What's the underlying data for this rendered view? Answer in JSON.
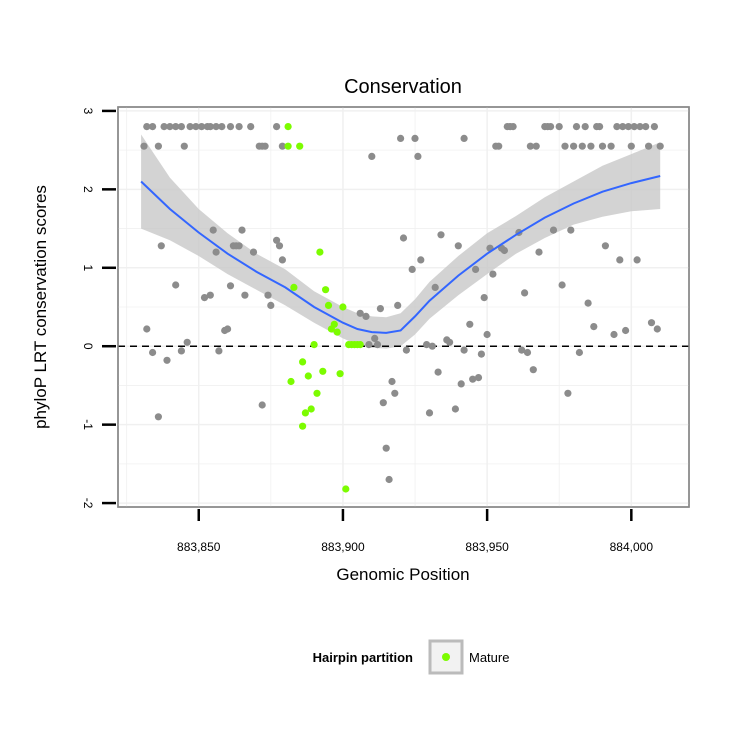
{
  "chart_data": {
    "type": "scatter",
    "title": "Conservation",
    "xlabel": "Genomic Position",
    "ylabel": "phyloP LRT conservation scores",
    "xlim": [
      883822,
      884020
    ],
    "ylim": [
      -2.05,
      3.05
    ],
    "x_ticks": [
      883850,
      883900,
      883950,
      884000
    ],
    "x_tick_labels": [
      "883,850",
      "883,900",
      "883,950",
      "884,000"
    ],
    "y_ticks": [
      -2,
      -1,
      0,
      1,
      2,
      3
    ],
    "y_tick_labels": [
      "-2",
      "-1",
      "0",
      "1",
      "2",
      "3"
    ],
    "grid": true,
    "reference_line": {
      "y": 0,
      "style": "dashed",
      "color": "#000000"
    },
    "legend": {
      "title": "Hairpin partition",
      "position": "bottom",
      "entries": [
        {
          "label": "Mature",
          "color": "#7cfc00"
        }
      ]
    },
    "colors": {
      "other_points": "#8c8c8c",
      "mature_points": "#7cfc00",
      "smooth_line": "#3366ff",
      "confidence_band": "#c8c8c8"
    },
    "series": [
      {
        "name": "",
        "color": "#8c8c8c",
        "points": [
          [
            883831,
            2.55
          ],
          [
            883832,
            2.8
          ],
          [
            883834,
            2.8
          ],
          [
            883836,
            2.55
          ],
          [
            883838,
            2.8
          ],
          [
            883840,
            2.8
          ],
          [
            883842,
            2.8
          ],
          [
            883844,
            2.8
          ],
          [
            883845,
            2.55
          ],
          [
            883847,
            2.8
          ],
          [
            883849,
            2.8
          ],
          [
            883851,
            2.8
          ],
          [
            883853,
            2.8
          ],
          [
            883854,
            2.8
          ],
          [
            883856,
            2.8
          ],
          [
            883858,
            2.8
          ],
          [
            883861,
            2.8
          ],
          [
            883864,
            2.8
          ],
          [
            883868,
            2.8
          ],
          [
            883871,
            2.55
          ],
          [
            883872,
            2.55
          ],
          [
            883873,
            2.55
          ],
          [
            883877,
            2.8
          ],
          [
            883879,
            2.55
          ],
          [
            883832,
            0.22
          ],
          [
            883834,
            -0.08
          ],
          [
            883836,
            -0.9
          ],
          [
            883837,
            1.28
          ],
          [
            883839,
            -0.18
          ],
          [
            883842,
            0.78
          ],
          [
            883844,
            -0.06
          ],
          [
            883846,
            0.05
          ],
          [
            883852,
            0.62
          ],
          [
            883854,
            0.65
          ],
          [
            883855,
            1.48
          ],
          [
            883856,
            1.2
          ],
          [
            883857,
            -0.06
          ],
          [
            883859,
            0.2
          ],
          [
            883860,
            0.22
          ],
          [
            883861,
            0.77
          ],
          [
            883862,
            1.28
          ],
          [
            883863,
            1.28
          ],
          [
            883864,
            1.28
          ],
          [
            883865,
            1.48
          ],
          [
            883866,
            0.65
          ],
          [
            883869,
            1.2
          ],
          [
            883872,
            -0.75
          ],
          [
            883874,
            0.65
          ],
          [
            883875,
            0.52
          ],
          [
            883877,
            1.35
          ],
          [
            883878,
            1.28
          ],
          [
            883879,
            1.1
          ],
          [
            883906,
            0.42
          ],
          [
            883908,
            0.38
          ],
          [
            883909,
            0.02
          ],
          [
            883910,
            2.42
          ],
          [
            883911,
            0.1
          ],
          [
            883912,
            0.02
          ],
          [
            883913,
            0.48
          ],
          [
            883914,
            -0.72
          ],
          [
            883915,
            -1.3
          ],
          [
            883916,
            -1.7
          ],
          [
            883917,
            -0.45
          ],
          [
            883918,
            -0.6
          ],
          [
            883919,
            0.52
          ],
          [
            883920,
            2.65
          ],
          [
            883921,
            1.38
          ],
          [
            883922,
            -0.05
          ],
          [
            883924,
            0.98
          ],
          [
            883925,
            2.65
          ],
          [
            883926,
            2.42
          ],
          [
            883927,
            1.1
          ],
          [
            883929,
            0.02
          ],
          [
            883930,
            -0.85
          ],
          [
            883931,
            0.0
          ],
          [
            883932,
            0.75
          ],
          [
            883933,
            -0.33
          ],
          [
            883934,
            1.42
          ],
          [
            883936,
            0.08
          ],
          [
            883937,
            0.05
          ],
          [
            883939,
            -0.8
          ],
          [
            883940,
            1.28
          ],
          [
            883941,
            -0.48
          ],
          [
            883942,
            -0.05
          ],
          [
            883942,
            2.65
          ],
          [
            883944,
            0.28
          ],
          [
            883945,
            -0.42
          ],
          [
            883946,
            0.98
          ],
          [
            883947,
            -0.4
          ],
          [
            883948,
            -0.1
          ],
          [
            883949,
            0.62
          ],
          [
            883950,
            0.15
          ],
          [
            883951,
            1.25
          ],
          [
            883952,
            0.92
          ],
          [
            883953,
            2.55
          ],
          [
            883954,
            2.55
          ],
          [
            883955,
            1.25
          ],
          [
            883956,
            1.22
          ],
          [
            883957,
            2.8
          ],
          [
            883958,
            2.8
          ],
          [
            883959,
            2.8
          ],
          [
            883961,
            1.45
          ],
          [
            883962,
            -0.05
          ],
          [
            883963,
            0.68
          ],
          [
            883964,
            -0.08
          ],
          [
            883965,
            2.55
          ],
          [
            883966,
            -0.3
          ],
          [
            883967,
            2.55
          ],
          [
            883968,
            1.2
          ],
          [
            883970,
            2.8
          ],
          [
            883971,
            2.8
          ],
          [
            883972,
            2.8
          ],
          [
            883973,
            1.48
          ],
          [
            883975,
            2.8
          ],
          [
            883976,
            0.78
          ],
          [
            883977,
            2.55
          ],
          [
            883978,
            -0.6
          ],
          [
            883979,
            1.48
          ],
          [
            883980,
            2.55
          ],
          [
            883981,
            2.8
          ],
          [
            883982,
            -0.08
          ],
          [
            883983,
            2.55
          ],
          [
            883984,
            2.8
          ],
          [
            883985,
            0.55
          ],
          [
            883986,
            2.55
          ],
          [
            883987,
            0.25
          ],
          [
            883988,
            2.8
          ],
          [
            883989,
            2.8
          ],
          [
            883990,
            2.55
          ],
          [
            883991,
            1.28
          ],
          [
            883993,
            2.55
          ],
          [
            883994,
            0.15
          ],
          [
            883995,
            2.8
          ],
          [
            883996,
            1.1
          ],
          [
            883997,
            2.8
          ],
          [
            883998,
            0.2
          ],
          [
            883999,
            2.8
          ],
          [
            884000,
            2.55
          ],
          [
            884001,
            2.8
          ],
          [
            884002,
            1.1
          ],
          [
            884003,
            2.8
          ],
          [
            884005,
            2.8
          ],
          [
            884006,
            2.55
          ],
          [
            884007,
            0.3
          ],
          [
            884008,
            2.8
          ],
          [
            884009,
            0.22
          ],
          [
            884010,
            2.55
          ]
        ]
      },
      {
        "name": "Mature",
        "color": "#7cfc00",
        "points": [
          [
            883881,
            2.8
          ],
          [
            883881,
            2.55
          ],
          [
            883882,
            -0.45
          ],
          [
            883883,
            0.75
          ],
          [
            883885,
            2.55
          ],
          [
            883886,
            -0.2
          ],
          [
            883886,
            -1.02
          ],
          [
            883887,
            -0.85
          ],
          [
            883888,
            -0.38
          ],
          [
            883889,
            -0.8
          ],
          [
            883890,
            0.02
          ],
          [
            883891,
            -0.6
          ],
          [
            883892,
            1.2
          ],
          [
            883893,
            -0.32
          ],
          [
            883894,
            0.72
          ],
          [
            883895,
            0.52
          ],
          [
            883896,
            0.22
          ],
          [
            883897,
            0.28
          ],
          [
            883898,
            0.18
          ],
          [
            883899,
            -0.35
          ],
          [
            883900,
            0.5
          ],
          [
            883901,
            -1.82
          ],
          [
            883902,
            0.02
          ],
          [
            883903,
            0.02
          ],
          [
            883904,
            0.02
          ],
          [
            883905,
            0.02
          ],
          [
            883906,
            0.02
          ]
        ]
      }
    ],
    "smooth": {
      "x": [
        883830,
        883840,
        883850,
        883860,
        883870,
        883880,
        883890,
        883900,
        883905,
        883910,
        883915,
        883920,
        883925,
        883930,
        883940,
        883950,
        883960,
        883970,
        883980,
        883990,
        884000,
        884010
      ],
      "y": [
        2.1,
        1.75,
        1.45,
        1.18,
        0.95,
        0.75,
        0.5,
        0.3,
        0.22,
        0.18,
        0.17,
        0.2,
        0.38,
        0.58,
        0.9,
        1.18,
        1.42,
        1.64,
        1.82,
        1.97,
        2.08,
        2.17
      ],
      "lower": [
        1.5,
        1.35,
        1.15,
        0.92,
        0.72,
        0.52,
        0.3,
        0.1,
        0.02,
        -0.02,
        -0.03,
        0.0,
        0.15,
        0.35,
        0.65,
        0.92,
        1.18,
        1.38,
        1.55,
        1.65,
        1.72,
        1.75
      ],
      "upper": [
        2.7,
        2.15,
        1.75,
        1.44,
        1.18,
        0.98,
        0.7,
        0.5,
        0.42,
        0.38,
        0.37,
        0.42,
        0.6,
        0.82,
        1.15,
        1.44,
        1.66,
        1.9,
        2.1,
        2.3,
        2.45,
        2.6
      ]
    }
  }
}
